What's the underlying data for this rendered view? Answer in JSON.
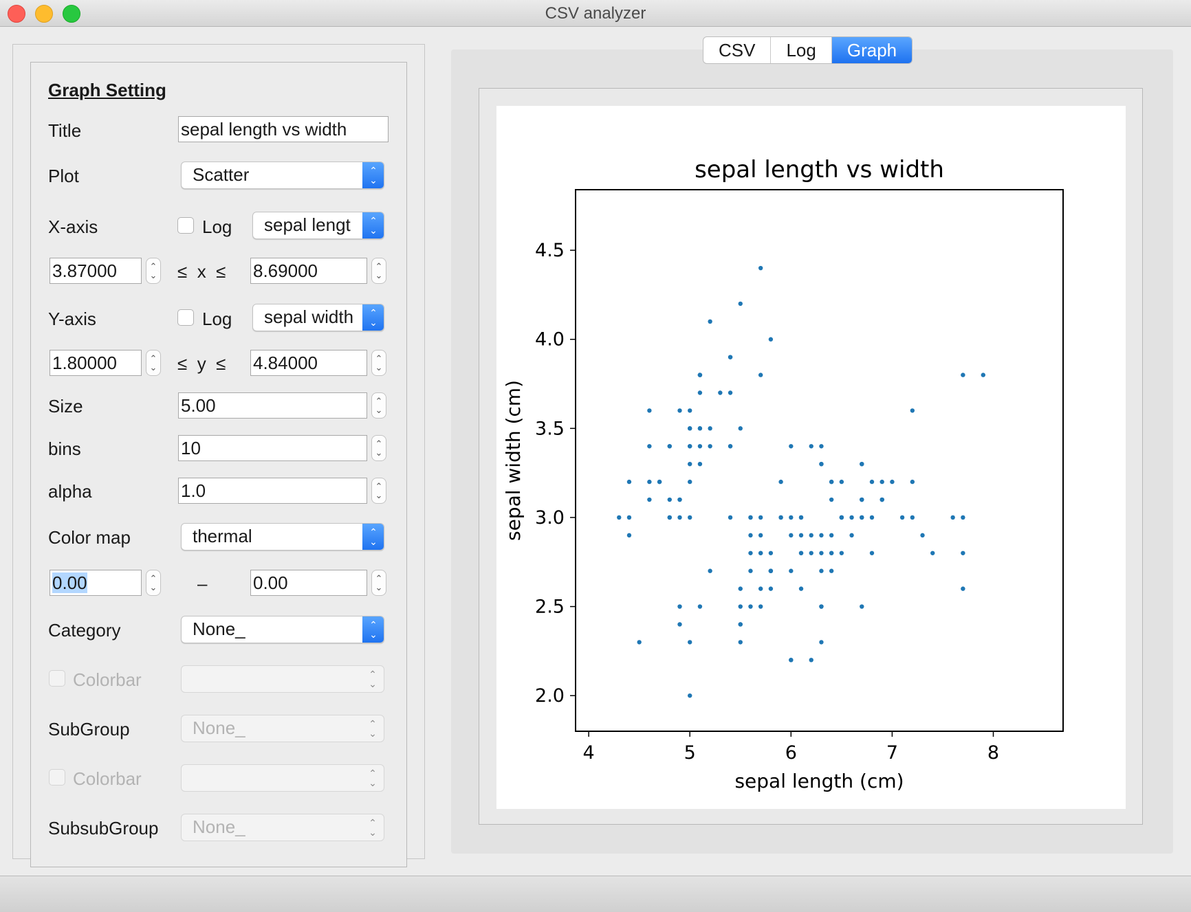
{
  "window": {
    "title": "CSV analyzer"
  },
  "settings": {
    "heading": "Graph Setting",
    "title_label": "Title",
    "title_value": "sepal length vs width",
    "plot_label": "Plot",
    "plot_value": "Scatter",
    "xaxis_label": "X-axis",
    "xaxis_log_label": "Log",
    "xaxis_column": "sepal lengt",
    "xmin": "3.87000",
    "xmax": "8.69000",
    "x_relation": "≤  x  ≤",
    "yaxis_label": "Y-axis",
    "yaxis_log_label": "Log",
    "yaxis_column": "sepal width",
    "ymin": "1.80000",
    "ymax": "4.84000",
    "y_relation": "≤  y  ≤",
    "size_label": "Size",
    "size_value": "5.00",
    "bins_label": "bins",
    "bins_value": "10",
    "alpha_label": "alpha",
    "alpha_value": "1.0",
    "colormap_label": "Color map",
    "colormap_value": "thermal",
    "cmin": "0.00",
    "cmax": "0.00",
    "crange_sep": "–",
    "category_label": "Category",
    "category_value": "None_",
    "colorbar1_label": "Colorbar",
    "subgroup_label": "SubGroup",
    "subgroup_value": "None_",
    "colorbar2_label": "Colorbar",
    "subsubgroup_label": "SubsubGroup",
    "subsubgroup_value": "None_"
  },
  "tabs": [
    "CSV",
    "Log",
    "Graph"
  ],
  "active_tab": "Graph",
  "colors": {
    "accent": "#1e72f0",
    "point": "#1f77b4"
  },
  "chart_data": {
    "type": "scatter",
    "title": "sepal length vs width",
    "xlabel": "sepal length (cm)",
    "ylabel": "sepal width (cm)",
    "xlim": [
      3.87,
      8.69
    ],
    "ylim": [
      1.8,
      4.84
    ],
    "xticks": [
      "4",
      "5",
      "6",
      "7",
      "8"
    ],
    "yticks": [
      "2.0",
      "2.5",
      "3.0",
      "3.5",
      "4.0",
      "4.5"
    ],
    "grid": false,
    "points": [
      [
        5.1,
        3.5
      ],
      [
        4.9,
        3.0
      ],
      [
        4.7,
        3.2
      ],
      [
        4.6,
        3.1
      ],
      [
        5.0,
        3.6
      ],
      [
        5.4,
        3.9
      ],
      [
        4.6,
        3.4
      ],
      [
        5.0,
        3.4
      ],
      [
        4.4,
        2.9
      ],
      [
        4.9,
        3.1
      ],
      [
        5.4,
        3.7
      ],
      [
        4.8,
        3.4
      ],
      [
        4.8,
        3.0
      ],
      [
        4.3,
        3.0
      ],
      [
        5.8,
        4.0
      ],
      [
        5.7,
        4.4
      ],
      [
        5.4,
        3.9
      ],
      [
        5.1,
        3.5
      ],
      [
        5.7,
        3.8
      ],
      [
        5.1,
        3.8
      ],
      [
        5.4,
        3.4
      ],
      [
        5.1,
        3.7
      ],
      [
        4.6,
        3.6
      ],
      [
        5.1,
        3.3
      ],
      [
        4.8,
        3.4
      ],
      [
        5.0,
        3.0
      ],
      [
        5.0,
        3.4
      ],
      [
        5.2,
        3.5
      ],
      [
        5.2,
        3.4
      ],
      [
        4.7,
        3.2
      ],
      [
        4.8,
        3.1
      ],
      [
        5.4,
        3.4
      ],
      [
        5.2,
        4.1
      ],
      [
        5.5,
        4.2
      ],
      [
        4.9,
        3.1
      ],
      [
        5.0,
        3.2
      ],
      [
        5.5,
        3.5
      ],
      [
        4.9,
        3.6
      ],
      [
        4.4,
        3.0
      ],
      [
        5.1,
        3.4
      ],
      [
        5.0,
        3.5
      ],
      [
        4.5,
        2.3
      ],
      [
        4.4,
        3.2
      ],
      [
        5.0,
        3.5
      ],
      [
        5.1,
        3.8
      ],
      [
        4.8,
        3.0
      ],
      [
        5.1,
        3.8
      ],
      [
        4.6,
        3.2
      ],
      [
        5.3,
        3.7
      ],
      [
        5.0,
        3.3
      ],
      [
        7.0,
        3.2
      ],
      [
        6.4,
        3.2
      ],
      [
        6.9,
        3.1
      ],
      [
        5.5,
        2.3
      ],
      [
        6.5,
        2.8
      ],
      [
        5.7,
        2.8
      ],
      [
        6.3,
        3.3
      ],
      [
        4.9,
        2.4
      ],
      [
        6.6,
        2.9
      ],
      [
        5.2,
        2.7
      ],
      [
        5.0,
        2.0
      ],
      [
        5.9,
        3.0
      ],
      [
        6.0,
        2.2
      ],
      [
        6.1,
        2.9
      ],
      [
        5.6,
        2.9
      ],
      [
        6.7,
        3.1
      ],
      [
        5.6,
        3.0
      ],
      [
        5.8,
        2.7
      ],
      [
        6.2,
        2.2
      ],
      [
        5.6,
        2.5
      ],
      [
        5.9,
        3.2
      ],
      [
        6.1,
        2.8
      ],
      [
        6.3,
        2.5
      ],
      [
        6.1,
        2.8
      ],
      [
        6.4,
        2.9
      ],
      [
        6.6,
        3.0
      ],
      [
        6.8,
        2.8
      ],
      [
        6.7,
        3.0
      ],
      [
        6.0,
        2.9
      ],
      [
        5.7,
        2.6
      ],
      [
        5.5,
        2.4
      ],
      [
        5.5,
        2.4
      ],
      [
        5.8,
        2.7
      ],
      [
        6.0,
        2.7
      ],
      [
        5.4,
        3.0
      ],
      [
        6.0,
        3.4
      ],
      [
        6.7,
        3.1
      ],
      [
        6.3,
        2.3
      ],
      [
        5.6,
        3.0
      ],
      [
        5.5,
        2.5
      ],
      [
        5.5,
        2.6
      ],
      [
        6.1,
        3.0
      ],
      [
        5.8,
        2.6
      ],
      [
        5.0,
        2.3
      ],
      [
        5.6,
        2.7
      ],
      [
        5.7,
        3.0
      ],
      [
        5.7,
        2.9
      ],
      [
        6.2,
        2.9
      ],
      [
        5.1,
        2.5
      ],
      [
        5.7,
        2.8
      ],
      [
        6.3,
        3.3
      ],
      [
        5.8,
        2.7
      ],
      [
        7.1,
        3.0
      ],
      [
        6.3,
        2.9
      ],
      [
        6.5,
        3.0
      ],
      [
        7.6,
        3.0
      ],
      [
        4.9,
        2.5
      ],
      [
        7.3,
        2.9
      ],
      [
        6.7,
        2.5
      ],
      [
        7.2,
        3.6
      ],
      [
        6.5,
        3.2
      ],
      [
        6.4,
        2.7
      ],
      [
        6.8,
        3.0
      ],
      [
        5.7,
        2.5
      ],
      [
        5.8,
        2.8
      ],
      [
        6.4,
        3.2
      ],
      [
        6.5,
        3.0
      ],
      [
        7.7,
        3.8
      ],
      [
        7.7,
        2.6
      ],
      [
        6.0,
        2.2
      ],
      [
        6.9,
        3.2
      ],
      [
        5.6,
        2.8
      ],
      [
        7.7,
        2.8
      ],
      [
        6.3,
        2.7
      ],
      [
        6.7,
        3.3
      ],
      [
        7.2,
        3.2
      ],
      [
        6.2,
        2.8
      ],
      [
        6.1,
        3.0
      ],
      [
        6.4,
        2.8
      ],
      [
        7.2,
        3.0
      ],
      [
        7.4,
        2.8
      ],
      [
        7.9,
        3.8
      ],
      [
        6.4,
        2.8
      ],
      [
        6.3,
        2.8
      ],
      [
        6.1,
        2.6
      ],
      [
        7.7,
        3.0
      ],
      [
        6.3,
        3.4
      ],
      [
        6.4,
        3.1
      ],
      [
        6.0,
        3.0
      ],
      [
        6.9,
        3.1
      ],
      [
        6.7,
        3.1
      ],
      [
        6.9,
        3.1
      ],
      [
        5.8,
        2.7
      ],
      [
        6.8,
        3.2
      ],
      [
        6.7,
        3.3
      ],
      [
        6.7,
        3.0
      ],
      [
        6.3,
        2.5
      ],
      [
        6.5,
        3.0
      ],
      [
        6.2,
        3.4
      ],
      [
        5.9,
        3.0
      ]
    ]
  }
}
